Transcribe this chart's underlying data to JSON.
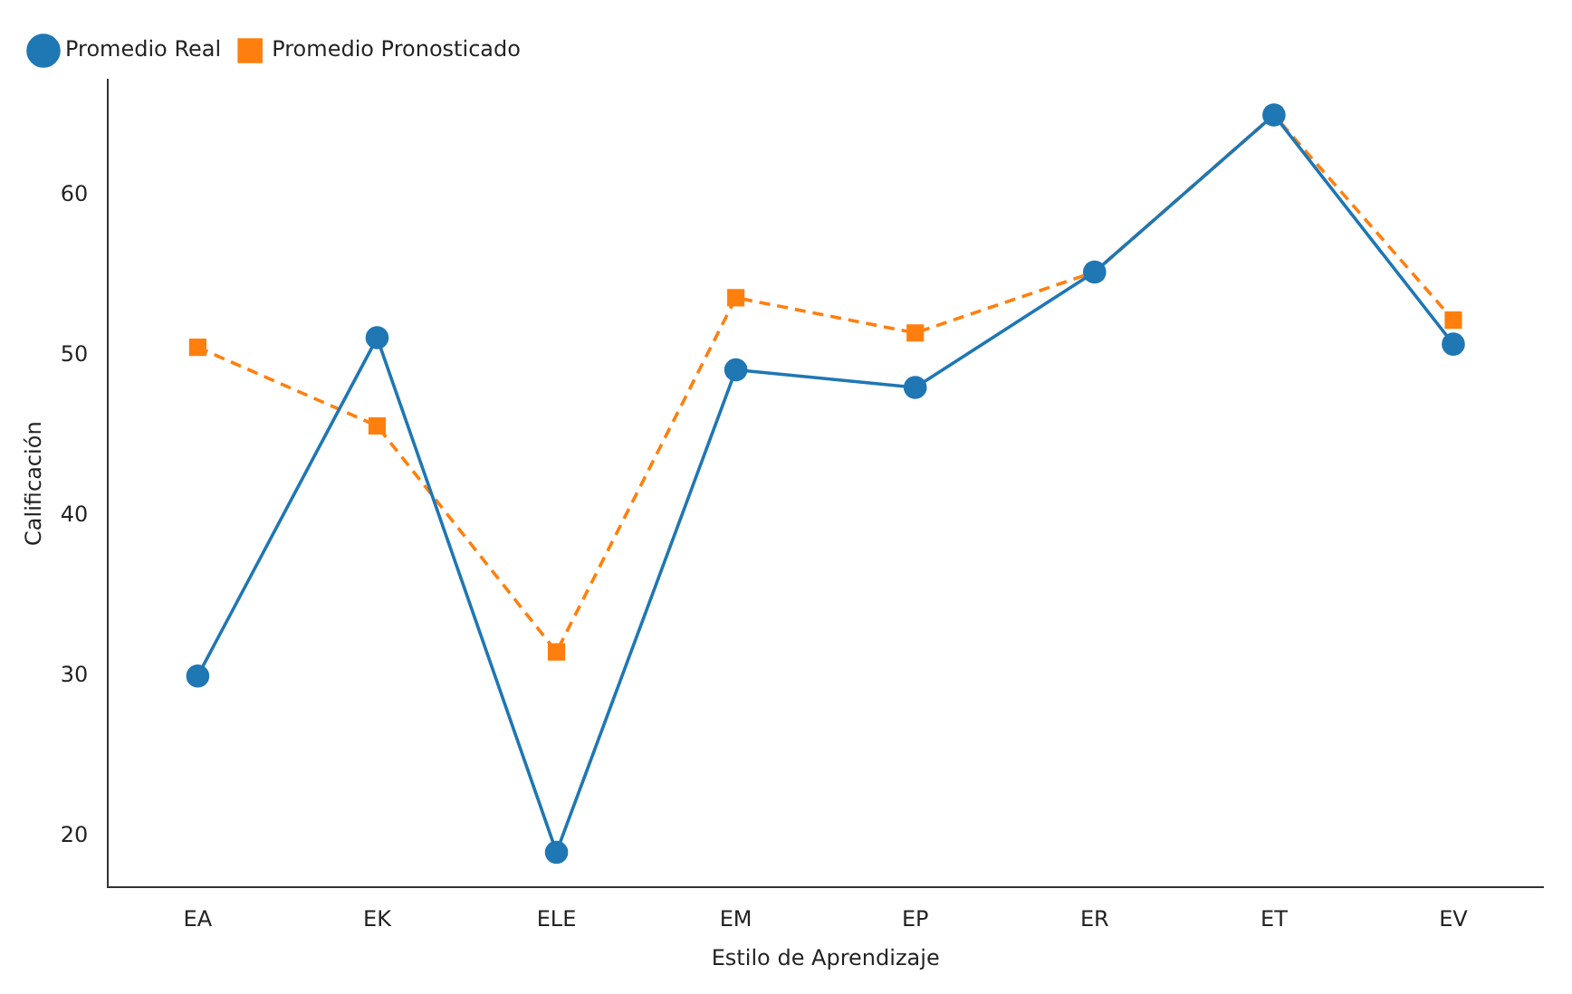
{
  "chart_data": {
    "type": "line",
    "xlabel": "Estilo de Aprendizaje",
    "ylabel": "Calificación",
    "categories": [
      "EA",
      "EK",
      "ELE",
      "EM",
      "EP",
      "ER",
      "ET",
      "EV"
    ],
    "series": [
      {
        "name": "Promedio Real",
        "color": "#1f77b4",
        "marker": "circle",
        "line_style": "solid",
        "values": [
          30.0,
          51.1,
          19.0,
          49.1,
          48.0,
          55.2,
          65.0,
          50.7
        ]
      },
      {
        "name": "Promedio Pronosticado",
        "color": "#ff7f0e",
        "marker": "square",
        "line_style": "dashed",
        "values": [
          50.5,
          45.6,
          31.5,
          53.6,
          51.4,
          55.2,
          65.0,
          52.2
        ]
      }
    ],
    "ylim": [
      16.8,
      67.2
    ],
    "yticks": [
      20,
      30,
      40,
      50,
      60
    ],
    "grid": false,
    "legend": "top left"
  }
}
